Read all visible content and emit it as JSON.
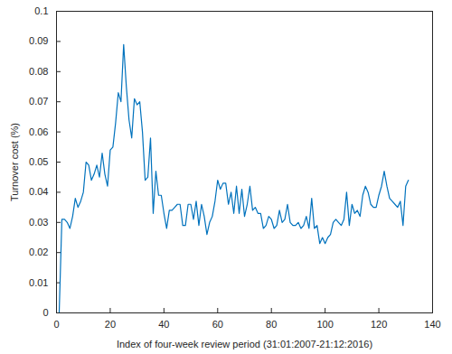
{
  "chart_data": {
    "type": "line",
    "x_label": "Index of four-week review period (31:01:2007-21:12:2016)",
    "y_label": "Turnover cost (%)",
    "x": [
      1,
      2,
      3,
      4,
      5,
      6,
      7,
      8,
      9,
      10,
      11,
      12,
      13,
      14,
      15,
      16,
      17,
      18,
      19,
      20,
      21,
      22,
      23,
      24,
      25,
      26,
      27,
      28,
      29,
      30,
      31,
      32,
      33,
      34,
      35,
      36,
      37,
      38,
      39,
      40,
      41,
      42,
      43,
      44,
      45,
      46,
      47,
      48,
      49,
      50,
      51,
      52,
      53,
      54,
      55,
      56,
      57,
      58,
      59,
      60,
      61,
      62,
      63,
      64,
      65,
      66,
      67,
      68,
      69,
      70,
      71,
      72,
      73,
      74,
      75,
      76,
      77,
      78,
      79,
      80,
      81,
      82,
      83,
      84,
      85,
      86,
      87,
      88,
      89,
      90,
      91,
      92,
      93,
      94,
      95,
      96,
      97,
      98,
      99,
      100,
      101,
      102,
      103,
      104,
      105,
      106,
      107,
      108,
      109,
      110,
      111,
      112,
      113,
      114,
      115,
      116,
      117,
      118,
      119,
      120,
      121,
      122,
      123,
      124,
      125,
      126,
      127,
      128,
      129,
      130,
      131
    ],
    "values": [
      0,
      0.031,
      0.031,
      0.03,
      0.028,
      0.032,
      0.038,
      0.035,
      0.037,
      0.04,
      0.05,
      0.049,
      0.044,
      0.046,
      0.049,
      0.045,
      0.053,
      0.046,
      0.042,
      0.054,
      0.055,
      0.063,
      0.073,
      0.07,
      0.089,
      0.075,
      0.064,
      0.058,
      0.071,
      0.069,
      0.07,
      0.06,
      0.044,
      0.045,
      0.058,
      0.033,
      0.047,
      0.039,
      0.039,
      0.033,
      0.028,
      0.034,
      0.034,
      0.035,
      0.036,
      0.036,
      0.029,
      0.029,
      0.036,
      0.036,
      0.031,
      0.037,
      0.029,
      0.036,
      0.032,
      0.026,
      0.03,
      0.032,
      0.037,
      0.044,
      0.041,
      0.043,
      0.043,
      0.036,
      0.04,
      0.033,
      0.042,
      0.033,
      0.041,
      0.032,
      0.036,
      0.042,
      0.034,
      0.035,
      0.033,
      0.033,
      0.028,
      0.029,
      0.032,
      0.031,
      0.028,
      0.029,
      0.034,
      0.03,
      0.031,
      0.036,
      0.03,
      0.029,
      0.029,
      0.03,
      0.028,
      0.029,
      0.032,
      0.028,
      0.038,
      0.028,
      0.029,
      0.023,
      0.025,
      0.023,
      0.025,
      0.026,
      0.03,
      0.031,
      0.03,
      0.029,
      0.031,
      0.04,
      0.029,
      0.036,
      0.033,
      0.034,
      0.032,
      0.039,
      0.042,
      0.04,
      0.036,
      0.035,
      0.035,
      0.039,
      0.042,
      0.047,
      0.042,
      0.038,
      0.037,
      0.036,
      0.035,
      0.037,
      0.029,
      0.042,
      0.044
    ],
    "color": "#0072bd",
    "xlim": [
      0,
      140
    ],
    "xticks": [
      0,
      20,
      40,
      60,
      80,
      100,
      120,
      140
    ],
    "ylim": [
      0,
      0.1
    ],
    "yticks": [
      0,
      0.01,
      0.02,
      0.03,
      0.04,
      0.05,
      0.06,
      0.07,
      0.08,
      0.09,
      0.1
    ],
    "grid": false
  }
}
